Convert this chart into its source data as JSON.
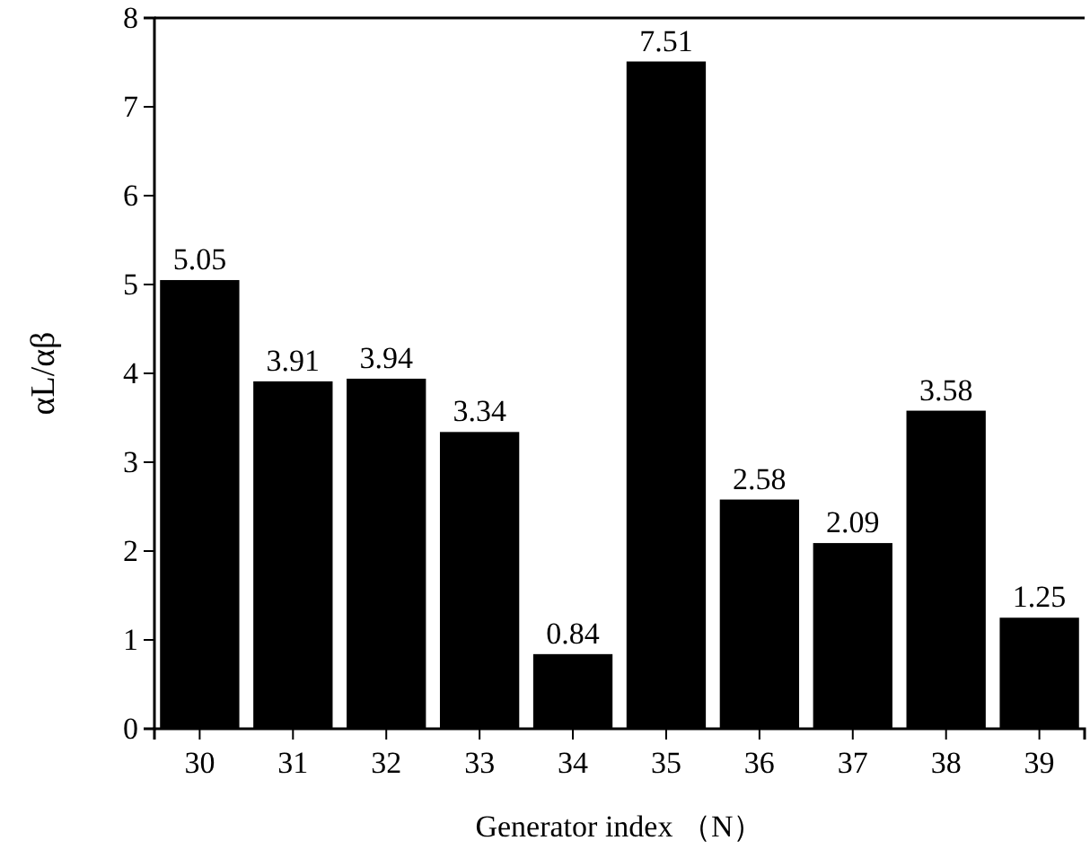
{
  "chart_data": {
    "type": "bar",
    "xlabel": "Generator index （N）",
    "ylabel": "αL/αβ",
    "categories": [
      "30",
      "31",
      "32",
      "33",
      "34",
      "35",
      "36",
      "37",
      "38",
      "39"
    ],
    "values": [
      5.05,
      3.91,
      3.94,
      3.34,
      0.84,
      7.51,
      2.58,
      2.09,
      3.58,
      1.25
    ],
    "color": "#000000",
    "ylim": [
      0,
      8
    ],
    "yticks": [
      0,
      1,
      2,
      3,
      4,
      5,
      6,
      7,
      8
    ],
    "grid": false,
    "data_labels": true
  }
}
